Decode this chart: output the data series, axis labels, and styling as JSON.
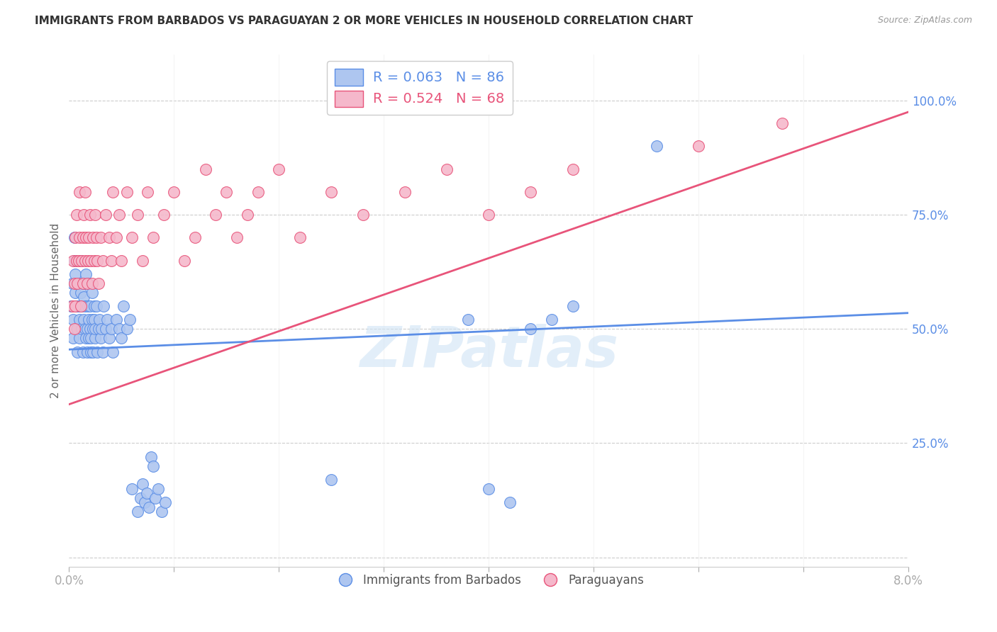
{
  "title": "IMMIGRANTS FROM BARBADOS VS PARAGUAYAN 2 OR MORE VEHICLES IN HOUSEHOLD CORRELATION CHART",
  "source": "Source: ZipAtlas.com",
  "ylabel": "2 or more Vehicles in Household",
  "ytick_labels": [
    "",
    "25.0%",
    "50.0%",
    "75.0%",
    "100.0%"
  ],
  "xmin": 0.0,
  "xmax": 0.08,
  "ymin": -0.02,
  "ymax": 1.1,
  "watermark": "ZIPatlas",
  "legend_label_blue": "R = 0.063   N = 86",
  "legend_label_pink": "R = 0.524   N = 68",
  "legend_bottom_blue": "Immigrants from Barbados",
  "legend_bottom_pink": "Paraguayans",
  "blue_color": "#aec6f0",
  "pink_color": "#f5b8cb",
  "blue_line_color": "#5b8ee6",
  "pink_line_color": "#e8547a",
  "blue_line_x": [
    0.0,
    0.08
  ],
  "blue_line_y": [
    0.455,
    0.535
  ],
  "pink_line_x": [
    0.0,
    0.08
  ],
  "pink_line_y": [
    0.335,
    0.975
  ],
  "blue_scatter_x": [
    0.0002,
    0.0003,
    0.0004,
    0.0004,
    0.0005,
    0.0005,
    0.0006,
    0.0006,
    0.0007,
    0.0007,
    0.0008,
    0.0008,
    0.0009,
    0.0009,
    0.001,
    0.001,
    0.0011,
    0.0011,
    0.0012,
    0.0012,
    0.0013,
    0.0013,
    0.0014,
    0.0014,
    0.0015,
    0.0015,
    0.0016,
    0.0016,
    0.0017,
    0.0017,
    0.0018,
    0.0018,
    0.0019,
    0.0019,
    0.002,
    0.002,
    0.0021,
    0.0021,
    0.0022,
    0.0022,
    0.0023,
    0.0023,
    0.0024,
    0.0024,
    0.0025,
    0.0025,
    0.0026,
    0.0027,
    0.0028,
    0.0029,
    0.003,
    0.0031,
    0.0032,
    0.0033,
    0.0035,
    0.0036,
    0.0038,
    0.004,
    0.0042,
    0.0045,
    0.0048,
    0.005,
    0.0052,
    0.0055,
    0.0058,
    0.006,
    0.0065,
    0.0068,
    0.007,
    0.0072,
    0.0074,
    0.0076,
    0.0078,
    0.008,
    0.0082,
    0.0085,
    0.0088,
    0.0092,
    0.025,
    0.038,
    0.04,
    0.042,
    0.044,
    0.046,
    0.048,
    0.056
  ],
  "blue_scatter_y": [
    0.55,
    0.6,
    0.52,
    0.48,
    0.65,
    0.7,
    0.58,
    0.62,
    0.5,
    0.55,
    0.45,
    0.5,
    0.6,
    0.55,
    0.52,
    0.48,
    0.65,
    0.58,
    0.5,
    0.55,
    0.6,
    0.45,
    0.52,
    0.57,
    0.5,
    0.55,
    0.48,
    0.62,
    0.5,
    0.45,
    0.55,
    0.6,
    0.48,
    0.52,
    0.5,
    0.55,
    0.45,
    0.48,
    0.52,
    0.58,
    0.5,
    0.45,
    0.55,
    0.52,
    0.48,
    0.5,
    0.55,
    0.45,
    0.5,
    0.52,
    0.48,
    0.5,
    0.45,
    0.55,
    0.5,
    0.52,
    0.48,
    0.5,
    0.45,
    0.52,
    0.5,
    0.48,
    0.55,
    0.5,
    0.52,
    0.15,
    0.1,
    0.13,
    0.16,
    0.12,
    0.14,
    0.11,
    0.22,
    0.2,
    0.13,
    0.15,
    0.1,
    0.12,
    0.17,
    0.52,
    0.15,
    0.12,
    0.5,
    0.52,
    0.55,
    0.9
  ],
  "pink_scatter_x": [
    0.0003,
    0.0004,
    0.0005,
    0.0005,
    0.0006,
    0.0006,
    0.0007,
    0.0007,
    0.0008,
    0.0009,
    0.001,
    0.001,
    0.0011,
    0.0012,
    0.0013,
    0.0013,
    0.0014,
    0.0015,
    0.0015,
    0.0016,
    0.0017,
    0.0018,
    0.0019,
    0.002,
    0.0021,
    0.0022,
    0.0023,
    0.0024,
    0.0025,
    0.0026,
    0.0027,
    0.0028,
    0.003,
    0.0032,
    0.0035,
    0.0038,
    0.004,
    0.0042,
    0.0045,
    0.0048,
    0.005,
    0.0055,
    0.006,
    0.0065,
    0.007,
    0.0075,
    0.008,
    0.009,
    0.01,
    0.011,
    0.012,
    0.013,
    0.014,
    0.015,
    0.016,
    0.017,
    0.018,
    0.02,
    0.022,
    0.025,
    0.028,
    0.032,
    0.036,
    0.04,
    0.044,
    0.048,
    0.06,
    0.068
  ],
  "pink_scatter_y": [
    0.55,
    0.65,
    0.5,
    0.6,
    0.7,
    0.55,
    0.65,
    0.75,
    0.6,
    0.65,
    0.8,
    0.7,
    0.55,
    0.65,
    0.6,
    0.7,
    0.75,
    0.65,
    0.8,
    0.7,
    0.6,
    0.65,
    0.7,
    0.75,
    0.65,
    0.6,
    0.7,
    0.65,
    0.75,
    0.7,
    0.65,
    0.6,
    0.7,
    0.65,
    0.75,
    0.7,
    0.65,
    0.8,
    0.7,
    0.75,
    0.65,
    0.8,
    0.7,
    0.75,
    0.65,
    0.8,
    0.7,
    0.75,
    0.8,
    0.65,
    0.7,
    0.85,
    0.75,
    0.8,
    0.7,
    0.75,
    0.8,
    0.85,
    0.7,
    0.8,
    0.75,
    0.8,
    0.85,
    0.75,
    0.8,
    0.85,
    0.9,
    0.95
  ]
}
